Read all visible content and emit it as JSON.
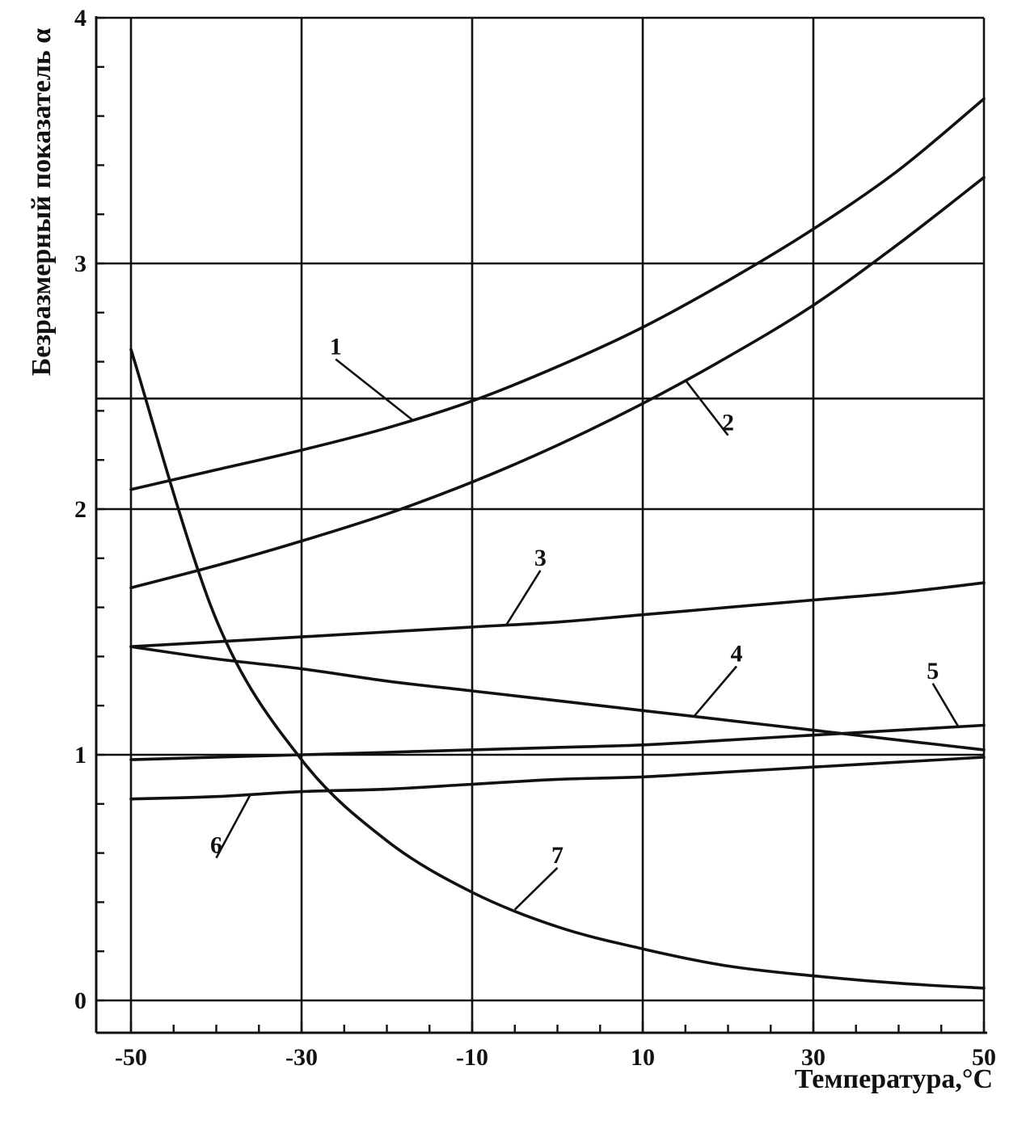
{
  "chart_data": {
    "type": "line",
    "title": "",
    "xlabel": "Температура,°C",
    "ylabel": "Безразмерный показатель α",
    "xlim": [
      -50,
      50
    ],
    "ylim": [
      0,
      4
    ],
    "x_ticks": [
      -50,
      -30,
      -10,
      10,
      30,
      50
    ],
    "x_tick_labels": [
      "-50",
      "-30",
      "-10",
      "10",
      "30",
      "50"
    ],
    "y_ticks": [
      0,
      1,
      2,
      3,
      4
    ],
    "y_tick_labels": [
      "0",
      "1",
      "2",
      "3",
      "4"
    ],
    "x_minor_step": 5,
    "y_minor_step": 0.2,
    "grid": true,
    "grid_x": [
      -50,
      -30,
      -10,
      10,
      30,
      50
    ],
    "grid_y": [
      0,
      1,
      2,
      2.45,
      3,
      4
    ],
    "x": [
      -50,
      -40,
      -30,
      -20,
      -10,
      0,
      10,
      20,
      30,
      40,
      50
    ],
    "series": [
      {
        "label": "1",
        "values": [
          2.08,
          2.16,
          2.24,
          2.33,
          2.44,
          2.58,
          2.74,
          2.93,
          3.14,
          3.38,
          3.67
        ]
      },
      {
        "label": "2",
        "values": [
          1.68,
          1.77,
          1.87,
          1.98,
          2.11,
          2.26,
          2.43,
          2.62,
          2.83,
          3.08,
          3.35
        ]
      },
      {
        "label": "3",
        "values": [
          1.44,
          1.46,
          1.48,
          1.5,
          1.52,
          1.54,
          1.57,
          1.6,
          1.63,
          1.66,
          1.7
        ]
      },
      {
        "label": "4",
        "values": [
          1.44,
          1.39,
          1.35,
          1.3,
          1.26,
          1.22,
          1.18,
          1.14,
          1.1,
          1.06,
          1.02
        ]
      },
      {
        "label": "5",
        "values": [
          0.98,
          0.99,
          1.0,
          1.01,
          1.02,
          1.03,
          1.04,
          1.06,
          1.08,
          1.1,
          1.12
        ]
      },
      {
        "label": "6",
        "values": [
          0.82,
          0.83,
          0.85,
          0.86,
          0.88,
          0.9,
          0.91,
          0.93,
          0.95,
          0.97,
          0.99
        ]
      },
      {
        "label": "7",
        "values": [
          2.65,
          1.55,
          0.98,
          0.65,
          0.44,
          0.3,
          0.21,
          0.14,
          0.1,
          0.07,
          0.05
        ]
      }
    ],
    "curve_labels": [
      {
        "label": "1",
        "anchor_x": -17,
        "text_x": -26,
        "text_y": 2.63
      },
      {
        "label": "2",
        "anchor_x": 15,
        "text_x": 20,
        "text_y": 2.32
      },
      {
        "label": "3",
        "anchor_x": -6,
        "text_x": -2,
        "text_y": 1.77
      },
      {
        "label": "4",
        "anchor_x": 16,
        "text_x": 21,
        "text_y": 1.38
      },
      {
        "label": "5",
        "anchor_x": 47,
        "text_x": 44,
        "text_y": 1.31
      },
      {
        "label": "6",
        "anchor_x": -36,
        "text_x": -40,
        "text_y": 0.6
      },
      {
        "label": "7",
        "anchor_x": -5,
        "text_x": 0,
        "text_y": 0.56
      }
    ]
  }
}
